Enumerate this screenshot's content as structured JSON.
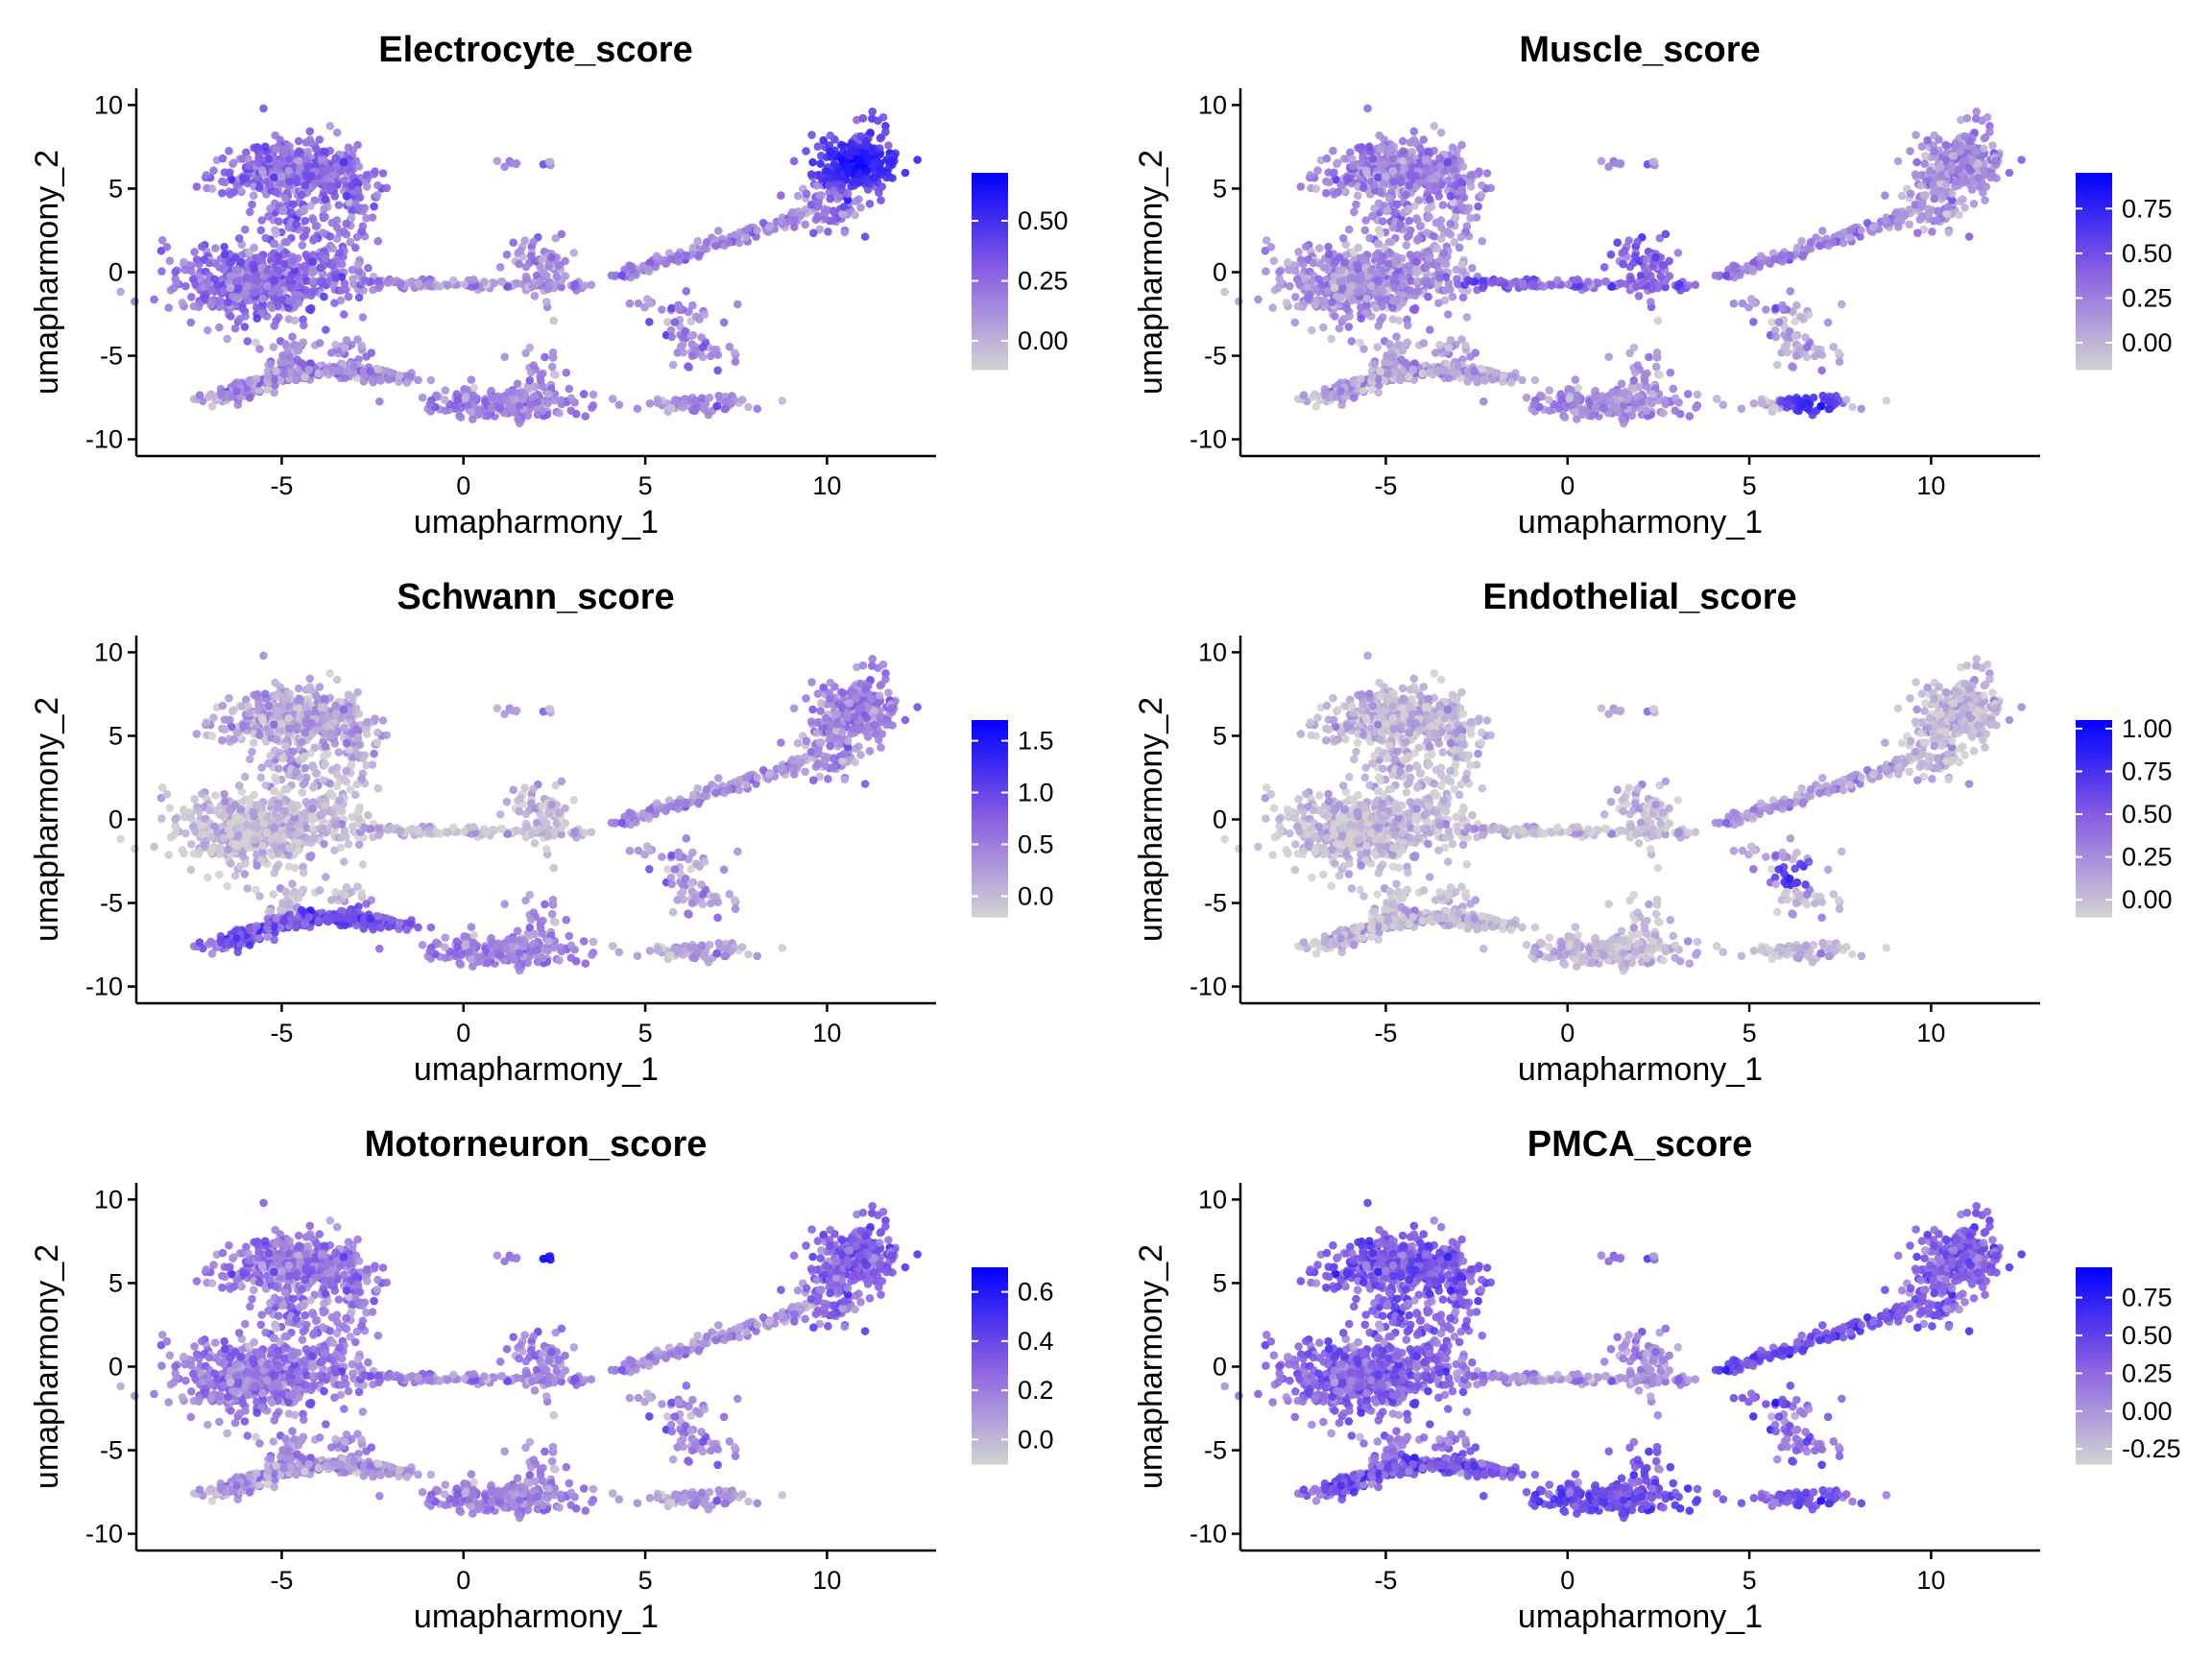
{
  "chart_data": [
    {
      "type": "scatter",
      "title": "Electrocyte_score",
      "xlabel": "umapharmony_1",
      "ylabel": "umapharmony_2",
      "xlim": [
        -9,
        13
      ],
      "ylim": [
        -11,
        11
      ],
      "xticks": [
        "-5",
        "0",
        "5",
        "10"
      ],
      "yticks": [
        "10",
        "5",
        "0",
        "-5",
        "-10"
      ],
      "legend": {
        "placement": "right",
        "ticks": [
          "0.50",
          "0.25",
          "0.00"
        ],
        "tick_values": [
          0.5,
          0.25,
          0.0
        ],
        "min": -0.12,
        "max": 0.7
      },
      "colors": {
        "low": "#d3d3d3",
        "high": "#0000ff"
      },
      "highlight": [
        {
          "x": 10.8,
          "y": 6.5,
          "r": 1.4,
          "level": 0.95
        }
      ],
      "baseline": {
        "c1": 0.45,
        "c2": 0.45,
        "c3": 0.3,
        "c4": 0.25,
        "c5": 0.35,
        "c6": 0.3,
        "c7": 0.35,
        "c8": 0.3,
        "c9": 0.35,
        "c10": 0.35,
        "c11": 0.4,
        "c12": 0.6
      }
    },
    {
      "type": "scatter",
      "title": "Muscle_score",
      "xlabel": "umapharmony_1",
      "ylabel": "umapharmony_2",
      "xlim": [
        -9,
        13
      ],
      "ylim": [
        -11,
        11
      ],
      "xticks": [
        "-5",
        "0",
        "5",
        "10"
      ],
      "yticks": [
        "10",
        "5",
        "0",
        "-5",
        "-10"
      ],
      "legend": {
        "placement": "right",
        "ticks": [
          "0.75",
          "0.50",
          "0.25",
          "0.00"
        ],
        "tick_values": [
          0.75,
          0.5,
          0.25,
          0.0
        ],
        "min": -0.15,
        "max": 0.95
      },
      "colors": {
        "low": "#d3d3d3",
        "high": "#0000ff"
      },
      "highlight": [
        {
          "x": 6.7,
          "y": -7.9,
          "r": 0.9,
          "level": 0.85
        }
      ],
      "baseline": {
        "c1": 0.35,
        "c2": 0.3,
        "c3": 0.5,
        "c4": 0.25,
        "c5": 0.25,
        "c6": 0.2,
        "c7": 0.3,
        "c8": 0.2,
        "c9": 0.2,
        "c10": 0.35,
        "c11": 0.25,
        "c12": 0.3
      }
    },
    {
      "type": "scatter",
      "title": "Schwann_score",
      "xlabel": "umapharmony_1",
      "ylabel": "umapharmony_2",
      "xlim": [
        -9,
        13
      ],
      "ylim": [
        -11,
        11
      ],
      "xticks": [
        "-5",
        "0",
        "5",
        "10"
      ],
      "yticks": [
        "10",
        "5",
        "0",
        "-5",
        "-10"
      ],
      "legend": {
        "placement": "right",
        "ticks": [
          "1.5",
          "1.0",
          "0.5",
          "0.0"
        ],
        "tick_values": [
          1.5,
          1.0,
          0.5,
          0.0
        ],
        "min": -0.2,
        "max": 1.7
      },
      "colors": {
        "low": "#d3d3d3",
        "high": "#0000ff"
      },
      "highlight": [
        {
          "x": -3.3,
          "y": -6.5,
          "r": 1.6,
          "level": 0.7
        }
      ],
      "baseline": {
        "c1": 0.2,
        "c2": 0.1,
        "c3": 0.1,
        "c4": 0.15,
        "c5": 0.15,
        "c6": 0.55,
        "c7": 0.35,
        "c8": 0.2,
        "c9": 0.25,
        "c10": 0.3,
        "c11": 0.3,
        "c12": 0.35
      }
    },
    {
      "type": "scatter",
      "title": "Endothelial_score",
      "xlabel": "umapharmony_1",
      "ylabel": "umapharmony_2",
      "xlim": [
        -9,
        13
      ],
      "ylim": [
        -11,
        11
      ],
      "xticks": [
        "-5",
        "0",
        "5",
        "10"
      ],
      "yticks": [
        "10",
        "5",
        "0",
        "-5",
        "-10"
      ],
      "legend": {
        "placement": "right",
        "ticks": [
          "1.00",
          "0.75",
          "0.50",
          "0.25",
          "0.00"
        ],
        "tick_values": [
          1.0,
          0.75,
          0.5,
          0.25,
          0.0
        ],
        "min": -0.1,
        "max": 1.05
      },
      "colors": {
        "low": "#d3d3d3",
        "high": "#0000ff"
      },
      "highlight": [
        {
          "x": 6.4,
          "y": -3.3,
          "r": 0.8,
          "level": 0.9
        }
      ],
      "baseline": {
        "c1": 0.12,
        "c2": 0.1,
        "c3": 0.1,
        "c4": 0.1,
        "c5": 0.1,
        "c6": 0.1,
        "c7": 0.1,
        "c8": 0.1,
        "c9": 0.12,
        "c10": 0.25,
        "c11": 0.1,
        "c12": 0.1
      }
    },
    {
      "type": "scatter",
      "title": "Motorneuron_score",
      "xlabel": "umapharmony_1",
      "ylabel": "umapharmony_2",
      "xlim": [
        -9,
        13
      ],
      "ylim": [
        -11,
        11
      ],
      "xticks": [
        "-5",
        "0",
        "5",
        "10"
      ],
      "yticks": [
        "10",
        "5",
        "0",
        "-5",
        "-10"
      ],
      "legend": {
        "placement": "right",
        "ticks": [
          "0.6",
          "0.4",
          "0.2",
          "0.0"
        ],
        "tick_values": [
          0.6,
          0.4,
          0.2,
          0.0
        ],
        "min": -0.1,
        "max": 0.7
      },
      "colors": {
        "low": "#d3d3d3",
        "high": "#0000ff"
      },
      "highlight": [
        {
          "x": 2.3,
          "y": 6.5,
          "r": 0.3,
          "level": 1.0
        }
      ],
      "baseline": {
        "c1": 0.4,
        "c2": 0.4,
        "c3": 0.35,
        "c4": 0.3,
        "c5": 0.35,
        "c6": 0.25,
        "c7": 0.35,
        "c8": 0.25,
        "c9": 0.35,
        "c10": 0.3,
        "c11": 0.45,
        "c12": 0.5
      }
    },
    {
      "type": "scatter",
      "title": "PMCA_score",
      "xlabel": "umapharmony_1",
      "ylabel": "umapharmony_2",
      "xlim": [
        -9,
        13
      ],
      "ylim": [
        -11,
        11
      ],
      "xticks": [
        "-5",
        "0",
        "5",
        "10"
      ],
      "yticks": [
        "10",
        "5",
        "0",
        "-5",
        "-10"
      ],
      "legend": {
        "placement": "right",
        "ticks": [
          "0.75",
          "0.50",
          "0.25",
          "0.00",
          "-0.25"
        ],
        "tick_values": [
          0.75,
          0.5,
          0.25,
          0.0,
          -0.25
        ],
        "min": -0.35,
        "max": 0.95
      },
      "colors": {
        "low": "#d3d3d3",
        "high": "#0000ff"
      },
      "highlight": [],
      "baseline": {
        "c1": 0.55,
        "c2": 0.5,
        "c3": 0.3,
        "c4": 0.35,
        "c5": 0.45,
        "c6": 0.55,
        "c7": 0.6,
        "c8": 0.55,
        "c9": 0.45,
        "c10": 0.6,
        "c11": 0.5,
        "c12": 0.5
      }
    }
  ]
}
